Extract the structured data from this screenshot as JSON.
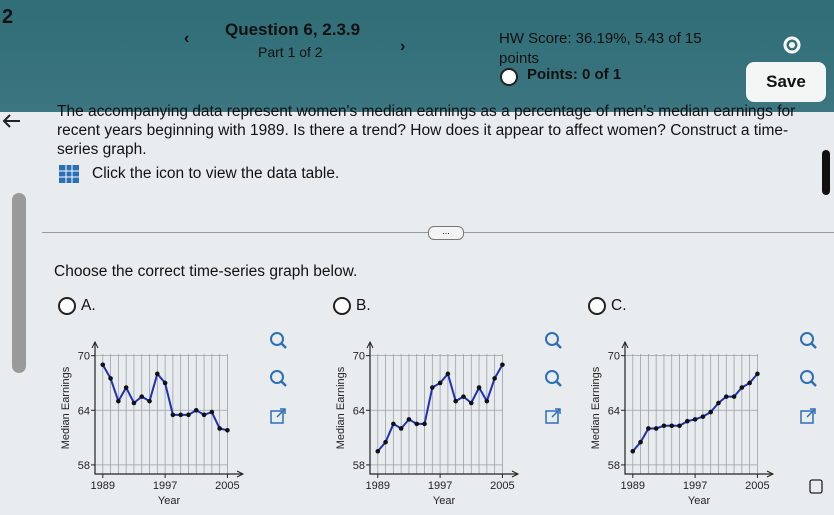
{
  "page_number": "2",
  "header": {
    "question": "Question 6, 2.3.9",
    "part": "Part 1 of 2",
    "hw_score": "HW Score: 36.19%, 5.43 of 15 points",
    "points": "Points: 0 of 1",
    "save": "Save"
  },
  "question": {
    "text": "The accompanying data represent women's median earnings as a percentage of men's median earnings for recent years beginning with 1989. Is there a trend? How does it appear to affect women? Construct a time-series graph.",
    "data_link": "Click the icon to view the data table.",
    "prompt": "Choose the correct time-series graph below."
  },
  "options": [
    "A.",
    "B.",
    "C."
  ],
  "chart_data": [
    {
      "type": "line",
      "xlabel": "Year",
      "ylabel": "Median Earnings",
      "color": "#1f2fb8",
      "x": [
        1989,
        1990,
        1991,
        1992,
        1993,
        1994,
        1995,
        1996,
        1997,
        1998,
        1999,
        2000,
        2001,
        2002,
        2003,
        2004,
        2005
      ],
      "values": [
        69.0,
        67.5,
        65.0,
        66.5,
        64.8,
        65.5,
        65.0,
        68.0,
        67.0,
        63.5,
        63.5,
        63.5,
        64.0,
        63.5,
        63.8,
        62.0,
        61.8
      ],
      "xlim": [
        1988,
        2007
      ],
      "ylim": [
        57,
        71.5
      ],
      "xticks": [
        1989,
        1997,
        2005
      ],
      "yticks": [
        58,
        64,
        70
      ],
      "grid": true
    },
    {
      "type": "line",
      "xlabel": "Year",
      "ylabel": "Median Earnings",
      "color": "#1f2fb8",
      "x": [
        1989,
        1990,
        1991,
        1992,
        1993,
        1994,
        1995,
        1996,
        1997,
        1998,
        1999,
        2000,
        2001,
        2002,
        2003,
        2004,
        2005
      ],
      "values": [
        59.5,
        60.5,
        62.5,
        62.0,
        63.0,
        62.5,
        62.5,
        66.5,
        67.0,
        68.0,
        65.0,
        65.5,
        64.8,
        66.5,
        65.0,
        67.5,
        69.0
      ],
      "xlim": [
        1988,
        2007
      ],
      "ylim": [
        57,
        71.5
      ],
      "xticks": [
        1989,
        1997,
        2005
      ],
      "yticks": [
        58,
        64,
        70
      ],
      "grid": true
    },
    {
      "type": "line",
      "xlabel": "Year",
      "ylabel": "Median Earnings",
      "color": "#1f2fb8",
      "x": [
        1989,
        1990,
        1991,
        1992,
        1993,
        1994,
        1995,
        1996,
        1997,
        1998,
        1999,
        2000,
        2001,
        2002,
        2003,
        2004,
        2005
      ],
      "values": [
        59.5,
        60.5,
        62.0,
        62.0,
        62.3,
        62.3,
        62.3,
        62.8,
        63.0,
        63.3,
        63.8,
        64.8,
        65.5,
        65.5,
        66.5,
        67.0,
        68.0
      ],
      "xlim": [
        1988,
        2007
      ],
      "ylim": [
        57,
        71.5
      ],
      "xticks": [
        1989,
        1997,
        2005
      ],
      "yticks": [
        58,
        64,
        70
      ],
      "grid": true
    }
  ]
}
